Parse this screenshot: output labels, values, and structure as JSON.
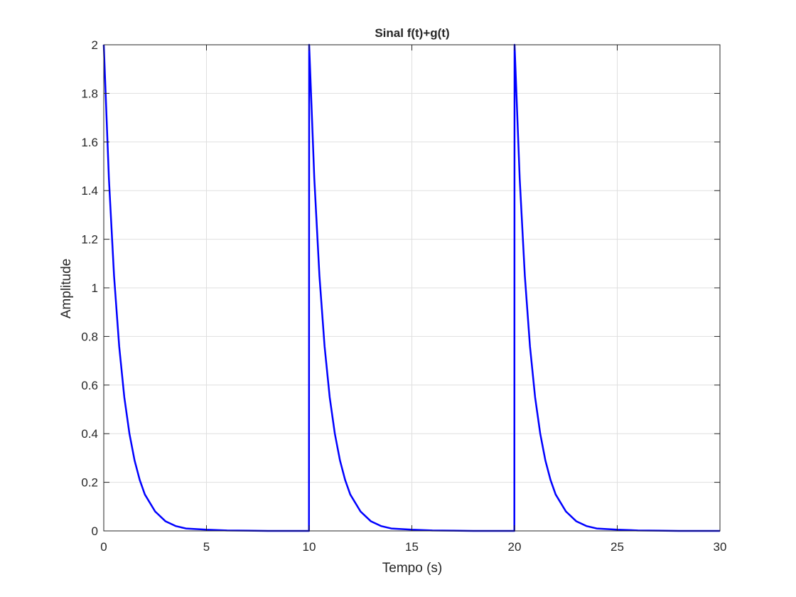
{
  "chart_data": {
    "type": "line",
    "title": "Sinal f(t)+g(t)",
    "xlabel": "Tempo (s)",
    "ylabel": "Amplitude",
    "xlim": [
      0,
      30
    ],
    "ylim": [
      0,
      2
    ],
    "xticks": [
      0,
      5,
      10,
      15,
      20,
      25,
      30
    ],
    "xtick_labels": [
      "0",
      "5",
      "10",
      "15",
      "20",
      "25",
      "30"
    ],
    "yticks": [
      0,
      0.2,
      0.4,
      0.6,
      0.8,
      1,
      1.2,
      1.4,
      1.6,
      1.8,
      2
    ],
    "ytick_labels": [
      "0",
      "0.2",
      "0.4",
      "0.6",
      "0.8",
      "1",
      "1.2",
      "1.4",
      "1.6",
      "1.8",
      "2"
    ],
    "grid": true,
    "series": [
      {
        "color": "#0000ff",
        "x": [
          0,
          0.25,
          0.5,
          0.75,
          1,
          1.25,
          1.5,
          1.75,
          2,
          2.5,
          3,
          3.5,
          4,
          5,
          6,
          7,
          8,
          9,
          9.99,
          10,
          10.25,
          10.5,
          10.75,
          11,
          11.25,
          11.5,
          11.75,
          12,
          12.5,
          13,
          13.5,
          14,
          15,
          16,
          17,
          18,
          19,
          19.99,
          20,
          20.25,
          20.5,
          20.75,
          21,
          21.25,
          21.5,
          21.75,
          22,
          22.5,
          23,
          23.5,
          24,
          25,
          26,
          27,
          28,
          29,
          30
        ],
        "y": [
          2,
          1.45,
          1.05,
          0.76,
          0.55,
          0.4,
          0.29,
          0.21,
          0.15,
          0.08,
          0.04,
          0.02,
          0.01,
          0.005,
          0.002,
          0.001,
          0,
          0,
          0,
          2,
          1.45,
          1.05,
          0.76,
          0.55,
          0.4,
          0.29,
          0.21,
          0.15,
          0.08,
          0.04,
          0.02,
          0.01,
          0.005,
          0.002,
          0.001,
          0,
          0,
          0,
          2,
          1.45,
          1.05,
          0.76,
          0.55,
          0.4,
          0.29,
          0.21,
          0.15,
          0.08,
          0.04,
          0.02,
          0.01,
          0.005,
          0.002,
          0.001,
          0,
          0,
          0
        ]
      }
    ]
  }
}
